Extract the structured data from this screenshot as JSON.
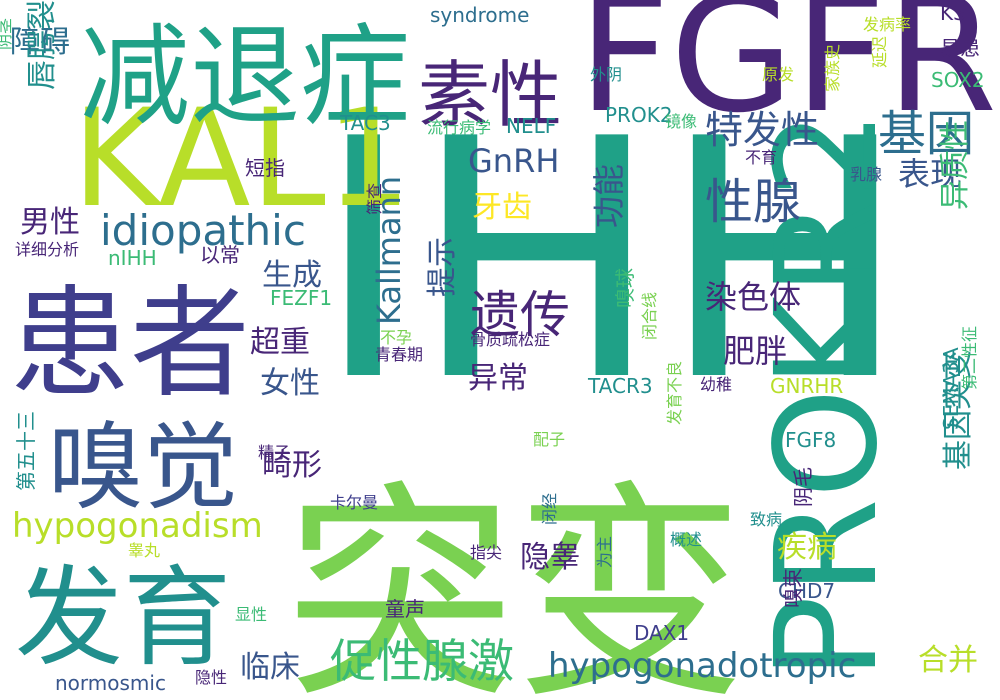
{
  "palette": {
    "dark_purple": "#482677",
    "indigo": "#3f3e8c",
    "blue": "#39568c",
    "steel_blue": "#2d6e8e",
    "teal": "#218f8d",
    "green_teal": "#1fa187",
    "green": "#3bbb75",
    "light_green": "#7ad151",
    "yellow_green": "#b8de29",
    "yellow": "#fde725"
  },
  "words": [
    {
      "text": "突变",
      "color": "light_green"
    },
    {
      "text": "IHH",
      "color": "green_teal"
    },
    {
      "text": "FGFR1",
      "color": "dark_purple"
    },
    {
      "text": "PROKR2",
      "color": "green_teal"
    },
    {
      "text": "KAL1",
      "color": "yellow_green"
    },
    {
      "text": "减退症",
      "color": "green_teal"
    },
    {
      "text": "患者",
      "color": "indigo"
    },
    {
      "text": "发育",
      "color": "teal"
    },
    {
      "text": "嗅觉",
      "color": "blue"
    },
    {
      "text": "素性",
      "color": "dark_purple"
    },
    {
      "text": "基因",
      "color": "steel_blue"
    },
    {
      "text": "idiopathic",
      "color": "steel_blue"
    },
    {
      "text": "hypogonadism",
      "color": "yellow_green"
    },
    {
      "text": "hypogonadotropic",
      "color": "steel_blue"
    },
    {
      "text": "促性腺激",
      "color": "green"
    },
    {
      "text": "Kallmann",
      "color": "steel_blue"
    },
    {
      "text": "遗传",
      "color": "dark_purple"
    },
    {
      "text": "性腺",
      "color": "blue"
    },
    {
      "text": "特发性",
      "color": "blue"
    },
    {
      "text": "表现",
      "color": "blue"
    },
    {
      "text": "GnRH",
      "color": "blue"
    },
    {
      "text": "功能",
      "color": "blue"
    },
    {
      "text": "牙齿",
      "color": "yellow"
    },
    {
      "text": "提示",
      "color": "blue"
    },
    {
      "text": "染色体",
      "color": "dark_purple"
    },
    {
      "text": "异常",
      "color": "dark_purple"
    },
    {
      "text": "肥胖",
      "color": "dark_purple"
    },
    {
      "text": "男性",
      "color": "dark_purple"
    },
    {
      "text": "生成",
      "color": "blue"
    },
    {
      "text": "超重",
      "color": "dark_purple"
    },
    {
      "text": "女性",
      "color": "blue"
    },
    {
      "text": "障碍",
      "color": "steel_blue"
    },
    {
      "text": "唇腭裂",
      "color": "teal"
    },
    {
      "text": "畸形",
      "color": "dark_purple"
    },
    {
      "text": "隐睾",
      "color": "dark_purple"
    },
    {
      "text": "疾病",
      "color": "yellow_green"
    },
    {
      "text": "临床",
      "color": "blue"
    },
    {
      "text": "基因突变",
      "color": "teal"
    },
    {
      "text": "异质性",
      "color": "green"
    },
    {
      "text": "合并",
      "color": "yellow_green"
    },
    {
      "text": "syndrome",
      "color": "steel_blue"
    },
    {
      "text": "易患",
      "color": "dark_purple"
    },
    {
      "text": "SOX2",
      "color": "green"
    },
    {
      "text": "KS",
      "color": "dark_purple"
    },
    {
      "text": "TAC3",
      "color": "teal"
    },
    {
      "text": "NELF",
      "color": "teal"
    },
    {
      "text": "PROK2",
      "color": "teal"
    },
    {
      "text": "TACR3",
      "color": "teal"
    },
    {
      "text": "GNRHR",
      "color": "yellow_green"
    },
    {
      "text": "FGF8",
      "color": "teal"
    },
    {
      "text": "CHD7",
      "color": "blue"
    },
    {
      "text": "DAX1",
      "color": "indigo"
    },
    {
      "text": "FEZF1",
      "color": "green"
    },
    {
      "text": "nIHH",
      "color": "green"
    },
    {
      "text": "SEMA3A",
      "color": "teal"
    },
    {
      "text": "normosmic",
      "color": "blue"
    },
    {
      "text": "短指",
      "color": "dark_purple"
    },
    {
      "text": "以常",
      "color": "dark_purple"
    },
    {
      "text": "详细分析",
      "color": "dark_purple"
    },
    {
      "text": "第五十三",
      "color": "teal"
    },
    {
      "text": "嗅球",
      "color": "green"
    },
    {
      "text": "流行病学",
      "color": "green"
    },
    {
      "text": "镜像",
      "color": "green"
    },
    {
      "text": "发病率",
      "color": "yellow_green"
    },
    {
      "text": "外阴",
      "color": "teal"
    },
    {
      "text": "原发",
      "color": "yellow_green"
    },
    {
      "text": "家族史",
      "color": "yellow_green"
    },
    {
      "text": "延迟",
      "color": "yellow_green"
    },
    {
      "text": "阴茎",
      "color": "green"
    },
    {
      "text": "不育",
      "color": "dark_purple"
    },
    {
      "text": "乳腺",
      "color": "blue"
    },
    {
      "text": "筛查",
      "color": "dark_purple"
    },
    {
      "text": "不孕",
      "color": "light_green"
    },
    {
      "text": "青春期",
      "color": "dark_purple"
    },
    {
      "text": "骨质疏松症",
      "color": "dark_purple"
    },
    {
      "text": "闭合线",
      "color": "light_green"
    },
    {
      "text": "幼稚",
      "color": "dark_purple"
    },
    {
      "text": "第二性征",
      "color": "green"
    },
    {
      "text": "精子",
      "color": "dark_purple"
    },
    {
      "text": "配子",
      "color": "light_green"
    },
    {
      "text": "发育不良",
      "color": "light_green"
    },
    {
      "text": "卡尔曼",
      "color": "indigo"
    },
    {
      "text": "阴毛",
      "color": "dark_purple"
    },
    {
      "text": "致病",
      "color": "teal"
    },
    {
      "text": "指尖",
      "color": "dark_purple"
    },
    {
      "text": "概述",
      "color": "teal"
    },
    {
      "text": "睾丸",
      "color": "yellow_green"
    },
    {
      "text": "闭经",
      "color": "steel_blue"
    },
    {
      "text": "为主",
      "color": "steel_blue"
    },
    {
      "text": "童声",
      "color": "dark_purple"
    },
    {
      "text": "嗅束",
      "color": "dark_purple"
    },
    {
      "text": "显性",
      "color": "green"
    },
    {
      "text": "隐性",
      "color": "dark_purple"
    }
  ]
}
